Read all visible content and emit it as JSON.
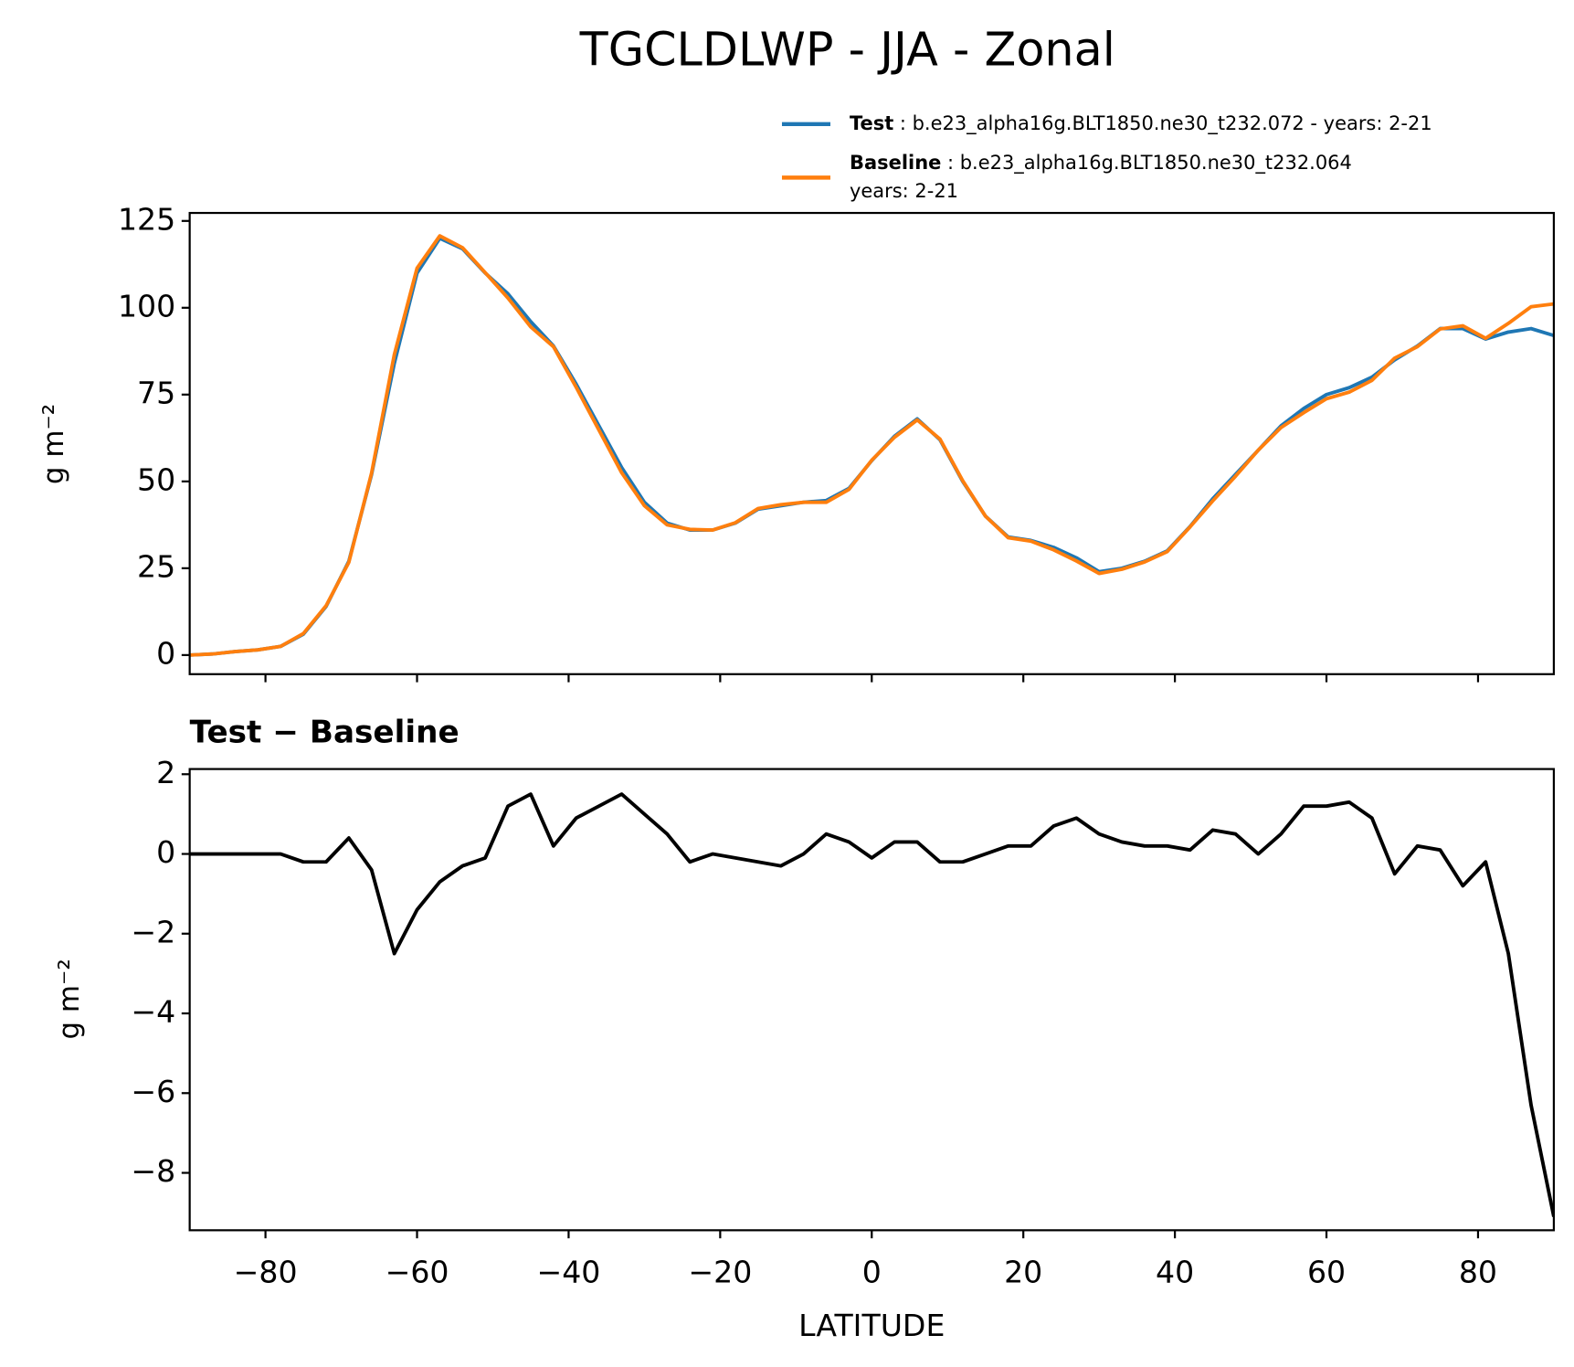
{
  "chart_data": [
    {
      "type": "line",
      "title": "TGCLDLWP - JJA - Zonal",
      "ylabel": "g m⁻²",
      "x": [
        -90,
        -87,
        -84,
        -81,
        -78,
        -75,
        -72,
        -69,
        -66,
        -63,
        -60,
        -57,
        -54,
        -51,
        -48,
        -45,
        -42,
        -39,
        -36,
        -33,
        -30,
        -27,
        -24,
        -21,
        -18,
        -15,
        -12,
        -9,
        -6,
        -3,
        0,
        3,
        6,
        9,
        12,
        15,
        18,
        21,
        24,
        27,
        30,
        33,
        36,
        39,
        42,
        45,
        48,
        51,
        54,
        57,
        60,
        63,
        66,
        69,
        72,
        75,
        78,
        81,
        84,
        87,
        90
      ],
      "series": [
        {
          "name": "Test",
          "legend_detail": [
            " : b.e23_alpha16g.BLT1850.ne30_t232.072 - years: 2-21"
          ],
          "color": "#1f77b4",
          "values": [
            0,
            0.3,
            1,
            1.5,
            2.5,
            6,
            14,
            27,
            52,
            84,
            110,
            120,
            117,
            110,
            104,
            96,
            89,
            78,
            66,
            54,
            44,
            38,
            36,
            36,
            38,
            42,
            43,
            44,
            44.5,
            48,
            56,
            63,
            68,
            62,
            50,
            40,
            34,
            33,
            31,
            28,
            24,
            25,
            27,
            30,
            37,
            45,
            52,
            59,
            66,
            71,
            75,
            77,
            80,
            85,
            89,
            94,
            94,
            91,
            93,
            94,
            92
          ]
        },
        {
          "name": "Baseline",
          "legend_detail": [
            " : b.e23_alpha16g.BLT1850.ne30_t232.064",
            "years: 2-21"
          ],
          "color": "#ff7f0e",
          "values": [
            0,
            0.3,
            1,
            1.5,
            2.5,
            6.2,
            14.2,
            26.7,
            52.4,
            86.5,
            111.4,
            120.7,
            117.3,
            110.1,
            102.8,
            94.5,
            88.8,
            77.1,
            64.8,
            52.5,
            43,
            37.5,
            36.2,
            36,
            38.1,
            42.2,
            43.3,
            44,
            44,
            47.7,
            56.1,
            62.7,
            67.7,
            62.2,
            50.2,
            40,
            33.8,
            32.8,
            30.3,
            27.1,
            23.5,
            24.7,
            26.8,
            29.8,
            36.9,
            44.4,
            51.5,
            59,
            65.5,
            69.8,
            73.8,
            75.7,
            79.1,
            85.5,
            88.8,
            93.9,
            94.8,
            91.2,
            95.5,
            100.3,
            101.1
          ]
        }
      ],
      "xlim": [
        -90,
        90
      ],
      "ylim": [
        -5.5,
        127.3
      ],
      "yticks": [
        0,
        25,
        50,
        75,
        100,
        125
      ]
    },
    {
      "type": "line",
      "title": "Test − Baseline",
      "ylabel": "g m⁻²",
      "xlabel": "LATITUDE",
      "color": "#000000",
      "x": [
        -90,
        -87,
        -84,
        -81,
        -78,
        -75,
        -72,
        -69,
        -66,
        -63,
        -60,
        -57,
        -54,
        -51,
        -48,
        -45,
        -42,
        -39,
        -36,
        -33,
        -30,
        -27,
        -24,
        -21,
        -18,
        -15,
        -12,
        -9,
        -6,
        -3,
        0,
        3,
        6,
        9,
        12,
        15,
        18,
        21,
        24,
        27,
        30,
        33,
        36,
        39,
        42,
        45,
        48,
        51,
        54,
        57,
        60,
        63,
        66,
        69,
        72,
        75,
        78,
        81,
        84,
        87,
        90
      ],
      "values": [
        0,
        0,
        0,
        0,
        0,
        -0.2,
        -0.2,
        0.4,
        -0.4,
        -2.5,
        -1.4,
        -0.7,
        -0.3,
        -0.1,
        1.2,
        1.5,
        0.2,
        0.9,
        1.2,
        1.5,
        1.0,
        0.5,
        -0.2,
        0,
        -0.1,
        -0.2,
        -0.3,
        0,
        0.5,
        0.3,
        -0.1,
        0.3,
        0.3,
        -0.2,
        -0.2,
        0,
        0.2,
        0.2,
        0.7,
        0.9,
        0.5,
        0.3,
        0.2,
        0.2,
        0.1,
        0.6,
        0.5,
        0,
        0.5,
        1.2,
        1.2,
        1.3,
        0.9,
        -0.5,
        0.2,
        0.1,
        -0.8,
        -0.2,
        -2.5,
        -6.3,
        -9.1
      ],
      "xlim": [
        -90,
        90
      ],
      "ylim": [
        -9.44,
        2.13
      ],
      "xticks": [
        {
          "value": -80,
          "label": "−80"
        },
        {
          "value": -60,
          "label": "−60"
        },
        {
          "value": -40,
          "label": "−40"
        },
        {
          "value": -20,
          "label": "−20"
        },
        0,
        20,
        40,
        60,
        80
      ],
      "yticks": [
        {
          "value": -8,
          "label": "−8"
        },
        {
          "value": -6,
          "label": "−6"
        },
        {
          "value": -4,
          "label": "−4"
        },
        {
          "value": -2,
          "label": "−2"
        },
        0,
        2
      ]
    }
  ]
}
